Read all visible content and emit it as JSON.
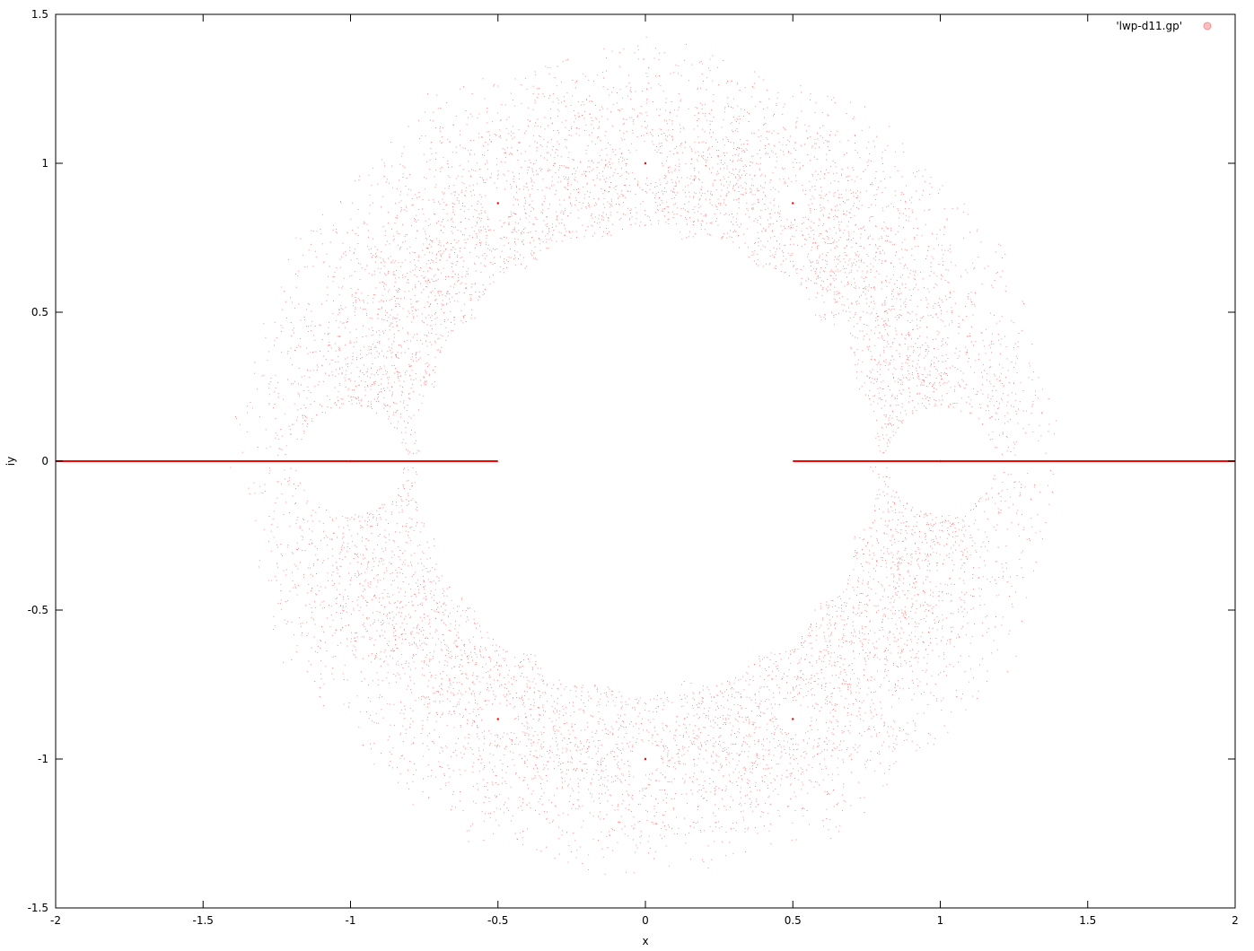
{
  "chart_data": {
    "type": "scatter",
    "title": "",
    "xlabel": "x",
    "ylabel": "iy",
    "xlim": [
      -2,
      2
    ],
    "ylim": [
      -1.5,
      1.5
    ],
    "xticks": [
      -2,
      -1.5,
      -1,
      -0.5,
      0,
      0.5,
      1,
      1.5,
      2
    ],
    "xtick_labels": [
      "-2",
      "-1.5",
      "-1",
      "-0.5",
      "0",
      "0.5",
      "1",
      "1.5",
      "2"
    ],
    "yticks": [
      -1.5,
      -1,
      -0.5,
      0,
      0.5,
      1,
      1.5
    ],
    "ytick_labels": [
      "-1.5",
      "-1",
      "-0.5",
      "0",
      "0.5",
      "1",
      "1.5"
    ],
    "grid": false,
    "legend_position": "top-right",
    "series": [
      {
        "name": "'lwp-d11.gp'",
        "color": "#ff0000",
        "marker": "dot",
        "description_points": {
          "ring_inner_radius": 0.75,
          "ring_outer_radius": 1.45,
          "ring_dense_radius": 1.0,
          "holes": [
            [
              0,
              1
            ],
            [
              -0.5,
              0.866
            ],
            [
              0.5,
              0.866
            ],
            [
              0,
              -1
            ],
            [
              -0.5,
              -0.866
            ],
            [
              0.5,
              -0.866
            ],
            [
              -1,
              0
            ],
            [
              1,
              0
            ]
          ],
          "real_axis_segments": [
            [
              -2,
              -0.5
            ],
            [
              0.5,
              2
            ]
          ]
        }
      }
    ]
  }
}
